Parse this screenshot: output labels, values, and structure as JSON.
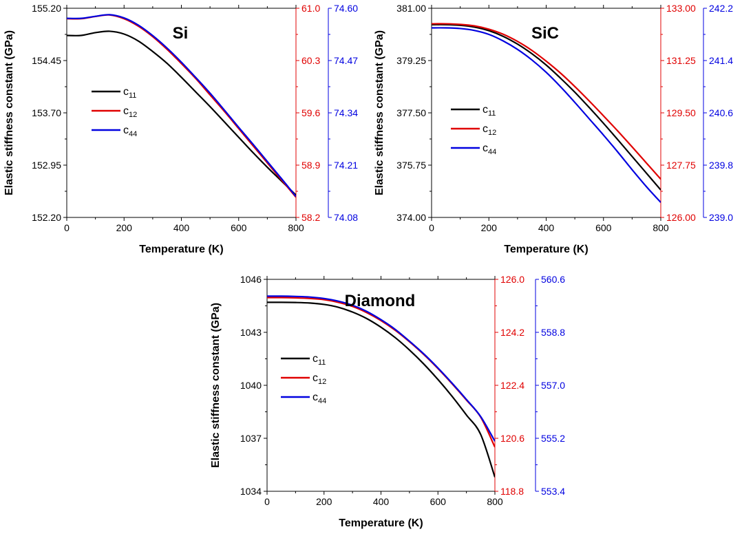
{
  "chart_data": [
    {
      "type": "line",
      "title": "Si",
      "xlabel": "Temperature (K)",
      "ylabel": "Elastic stiffness constant (GPa)",
      "xlim": [
        0,
        800
      ],
      "xticks": [
        0,
        200,
        400,
        600,
        800
      ],
      "xtick_labels": [
        "0",
        "200",
        "400",
        "600",
        "800"
      ],
      "axes": [
        {
          "side": "left",
          "color": "#000000",
          "ylim": [
            152.2,
            155.2
          ],
          "ticks": [
            152.2,
            152.95,
            153.7,
            154.45,
            155.2
          ],
          "tick_labels": [
            "152.20",
            "152.95",
            "153.70",
            "154.45",
            "155.20"
          ]
        },
        {
          "side": "right",
          "color": "#e00000",
          "ylim": [
            58.2,
            61.0
          ],
          "ticks": [
            58.2,
            58.9,
            59.6,
            60.3,
            61.0
          ],
          "tick_labels": [
            "58.2",
            "58.9",
            "59.6",
            "60.3",
            "61.0"
          ]
        },
        {
          "side": "right",
          "color": "#0000e0",
          "ylim": [
            74.08,
            74.6
          ],
          "ticks": [
            74.08,
            74.21,
            74.34,
            74.47,
            74.6
          ],
          "tick_labels": [
            "74.08",
            "74.21",
            "74.34",
            "74.47",
            "74.60"
          ]
        }
      ],
      "legend_position": "left",
      "series": [
        {
          "name": "c",
          "subscript": "11",
          "color": "#000000",
          "axis": 0,
          "x": [
            0,
            50,
            100,
            150,
            200,
            250,
            300,
            350,
            400,
            450,
            500,
            550,
            600,
            650,
            700,
            750,
            800
          ],
          "y": [
            154.81,
            154.81,
            154.85,
            154.87,
            154.83,
            154.73,
            154.58,
            154.41,
            154.21,
            154.0,
            153.79,
            153.57,
            153.35,
            153.13,
            152.92,
            152.72,
            152.52
          ]
        },
        {
          "name": "c",
          "subscript": "12",
          "color": "#e00000",
          "axis": 1,
          "x": [
            0,
            50,
            100,
            150,
            200,
            250,
            300,
            350,
            400,
            450,
            500,
            550,
            600,
            650,
            700,
            750,
            800
          ],
          "y": [
            60.86,
            60.86,
            60.89,
            60.91,
            60.86,
            60.76,
            60.62,
            60.45,
            60.26,
            60.06,
            59.84,
            59.62,
            59.39,
            59.16,
            58.93,
            58.7,
            58.47
          ]
        },
        {
          "name": "c",
          "subscript": "44",
          "color": "#0000e0",
          "axis": 2,
          "x": [
            0,
            50,
            100,
            150,
            200,
            250,
            300,
            350,
            400,
            450,
            500,
            550,
            600,
            650,
            700,
            750,
            800
          ],
          "y": [
            74.575,
            74.575,
            74.58,
            74.584,
            74.576,
            74.558,
            74.532,
            74.501,
            74.466,
            74.428,
            74.389,
            74.347,
            74.304,
            74.262,
            74.219,
            74.176,
            74.132
          ]
        }
      ]
    },
    {
      "type": "line",
      "title": "SiC",
      "xlabel": "Temperature (K)",
      "ylabel": "Elastic stiffness constant (GPa)",
      "xlim": [
        0,
        800
      ],
      "xticks": [
        0,
        200,
        400,
        600,
        800
      ],
      "xtick_labels": [
        "0",
        "200",
        "400",
        "600",
        "800"
      ],
      "axes": [
        {
          "side": "left",
          "color": "#000000",
          "ylim": [
            374.0,
            381.0
          ],
          "ticks": [
            374.0,
            375.75,
            377.5,
            379.25,
            381.0
          ],
          "tick_labels": [
            "374.00",
            "375.75",
            "377.50",
            "379.25",
            "381.00"
          ]
        },
        {
          "side": "right",
          "color": "#e00000",
          "ylim": [
            126.0,
            133.0
          ],
          "ticks": [
            126.0,
            127.75,
            129.5,
            131.25,
            133.0
          ],
          "tick_labels": [
            "126.00",
            "127.75",
            "129.50",
            "131.25",
            "133.00"
          ]
        },
        {
          "side": "right",
          "color": "#0000e0",
          "ylim": [
            239.0,
            242.2
          ],
          "ticks": [
            239.0,
            239.8,
            240.6,
            241.4,
            242.2
          ],
          "tick_labels": [
            "239.0",
            "239.8",
            "240.6",
            "241.4",
            "242.2"
          ]
        }
      ],
      "legend_position": "left",
      "series": [
        {
          "name": "c",
          "subscript": "11",
          "color": "#000000",
          "axis": 0,
          "x": [
            0,
            50,
            100,
            150,
            200,
            250,
            300,
            350,
            400,
            450,
            500,
            550,
            600,
            650,
            700,
            750,
            800
          ],
          "y": [
            380.45,
            380.45,
            380.43,
            380.37,
            380.25,
            380.06,
            379.8,
            379.48,
            379.1,
            378.66,
            378.19,
            377.68,
            377.15,
            376.6,
            376.04,
            375.48,
            374.92
          ]
        },
        {
          "name": "c",
          "subscript": "12",
          "color": "#e00000",
          "axis": 1,
          "x": [
            0,
            50,
            100,
            150,
            200,
            250,
            300,
            350,
            400,
            450,
            500,
            550,
            600,
            650,
            700,
            750,
            800
          ],
          "y": [
            132.48,
            132.48,
            132.46,
            132.41,
            132.3,
            132.13,
            131.89,
            131.59,
            131.23,
            130.83,
            130.38,
            129.9,
            129.4,
            128.89,
            128.36,
            127.82,
            127.28
          ]
        },
        {
          "name": "c",
          "subscript": "44",
          "color": "#0000e0",
          "axis": 2,
          "x": [
            0,
            50,
            100,
            150,
            200,
            250,
            300,
            350,
            400,
            450,
            500,
            550,
            600,
            650,
            700,
            750,
            800
          ],
          "y": [
            241.9,
            241.9,
            241.89,
            241.86,
            241.8,
            241.7,
            241.57,
            241.41,
            241.22,
            241.0,
            240.76,
            240.51,
            240.26,
            240.0,
            239.73,
            239.47,
            239.23
          ]
        }
      ]
    },
    {
      "type": "line",
      "title": "Diamond",
      "xlabel": "Temperature (K)",
      "ylabel": "Elastic stiffness constant (GPa)",
      "xlim": [
        0,
        800
      ],
      "xticks": [
        0,
        200,
        400,
        600,
        800
      ],
      "xtick_labels": [
        "0",
        "200",
        "400",
        "600",
        "800"
      ],
      "axes": [
        {
          "side": "left",
          "color": "#000000",
          "ylim": [
            1034,
            1046
          ],
          "ticks": [
            1034,
            1037,
            1040,
            1043,
            1046
          ],
          "tick_labels": [
            "1034",
            "1037",
            "1040",
            "1043",
            "1046"
          ]
        },
        {
          "side": "right",
          "color": "#e00000",
          "ylim": [
            118.8,
            126.0
          ],
          "ticks": [
            118.8,
            120.6,
            122.4,
            124.2,
            126.0
          ],
          "tick_labels": [
            "118.8",
            "120.6",
            "122.4",
            "124.2",
            "126.0"
          ]
        },
        {
          "side": "right",
          "color": "#0000e0",
          "ylim": [
            553.4,
            560.6
          ],
          "ticks": [
            553.4,
            555.2,
            557.0,
            558.8,
            560.6
          ],
          "tick_labels": [
            "553.4",
            "555.2",
            "557.0",
            "558.8",
            "560.6"
          ]
        }
      ],
      "legend_position": "left",
      "series": [
        {
          "name": "c",
          "subscript": "11",
          "color": "#000000",
          "axis": 0,
          "x": [
            0,
            50,
            100,
            150,
            200,
            250,
            300,
            350,
            400,
            450,
            500,
            550,
            600,
            650,
            700,
            750,
            800
          ],
          "y": [
            1044.7,
            1044.7,
            1044.69,
            1044.66,
            1044.58,
            1044.42,
            1044.15,
            1043.78,
            1043.29,
            1042.7,
            1042.0,
            1041.21,
            1040.33,
            1039.37,
            1038.32,
            1037.22,
            1034.8
          ]
        },
        {
          "name": "c",
          "subscript": "12",
          "color": "#e00000",
          "axis": 1,
          "x": [
            0,
            50,
            100,
            150,
            200,
            250,
            300,
            350,
            400,
            450,
            500,
            550,
            600,
            650,
            700,
            750,
            800
          ],
          "y": [
            125.38,
            125.38,
            125.37,
            125.35,
            125.31,
            125.22,
            125.08,
            124.87,
            124.6,
            124.27,
            123.88,
            123.45,
            122.97,
            122.45,
            121.9,
            121.32,
            120.3
          ]
        },
        {
          "name": "c",
          "subscript": "44",
          "color": "#0000e0",
          "axis": 2,
          "x": [
            0,
            50,
            100,
            150,
            200,
            250,
            300,
            350,
            400,
            450,
            500,
            550,
            600,
            650,
            700,
            750,
            800
          ],
          "y": [
            560.03,
            560.03,
            560.02,
            560.0,
            559.95,
            559.86,
            559.72,
            559.51,
            559.23,
            558.9,
            558.5,
            558.07,
            557.59,
            557.07,
            556.52,
            555.94,
            555.1
          ]
        }
      ]
    }
  ]
}
